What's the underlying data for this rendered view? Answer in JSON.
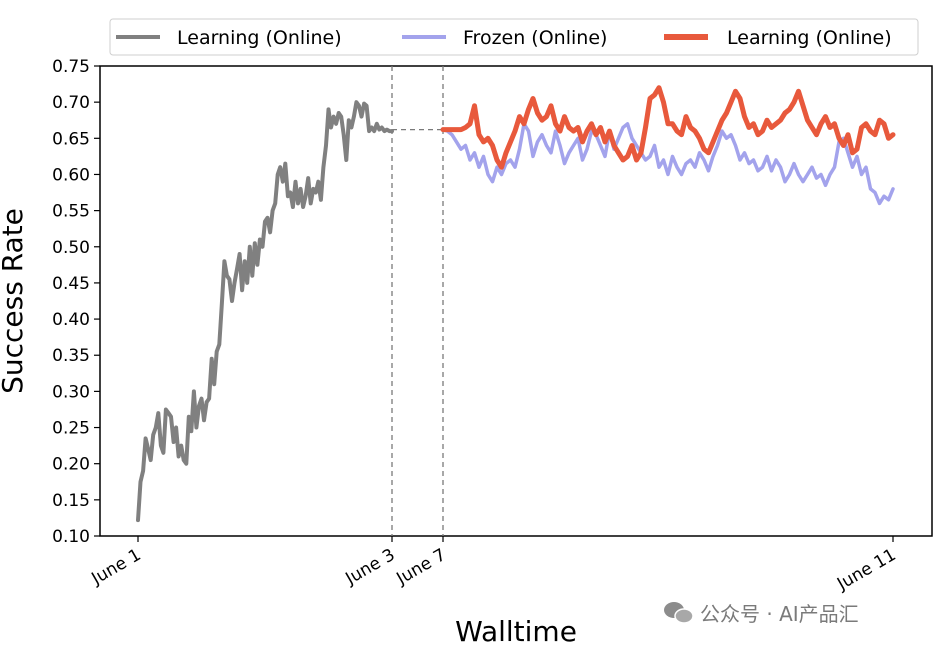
{
  "chart_data": {
    "type": "line",
    "xlabel": "Walltime",
    "ylabel": "Success Rate",
    "ylim": [
      0.1,
      0.75
    ],
    "yticks": [
      "0.10",
      "0.15",
      "0.20",
      "0.25",
      "0.30",
      "0.35",
      "0.40",
      "0.45",
      "0.50",
      "0.55",
      "0.60",
      "0.65",
      "0.70",
      "0.75"
    ],
    "xticks": [
      "June 1",
      "June 3",
      "June 7",
      "June 11"
    ],
    "legend_position": "top",
    "grid": false,
    "gap_connector": {
      "y": 0.662,
      "style": "dashed",
      "from": "June 3",
      "to": "June 7"
    },
    "series": [
      {
        "name": "Learning (Online)",
        "color": "#808080",
        "x": [
          0.0,
          0.01,
          0.02,
          0.03,
          0.04,
          0.05,
          0.06,
          0.07,
          0.08,
          0.09,
          0.1,
          0.11,
          0.12,
          0.13,
          0.14,
          0.15,
          0.16,
          0.17,
          0.18,
          0.19,
          0.2,
          0.21,
          0.22,
          0.23,
          0.24,
          0.25,
          0.26,
          0.27,
          0.28,
          0.29,
          0.3,
          0.31,
          0.32,
          0.33,
          0.34,
          0.35,
          0.36,
          0.37,
          0.38,
          0.39,
          0.4,
          0.41,
          0.42,
          0.43,
          0.44,
          0.45,
          0.46,
          0.47,
          0.48,
          0.49,
          0.5,
          0.51,
          0.52,
          0.53,
          0.54,
          0.55,
          0.56,
          0.57,
          0.58,
          0.59,
          0.6,
          0.61,
          0.62,
          0.63,
          0.64,
          0.65,
          0.66,
          0.67,
          0.68,
          0.69,
          0.7,
          0.71,
          0.72,
          0.73,
          0.74,
          0.75,
          0.76,
          0.77,
          0.78,
          0.79,
          0.8,
          0.81,
          0.82,
          0.83,
          0.84,
          0.85,
          0.86,
          0.87,
          0.88,
          0.89,
          0.9,
          0.91,
          0.92,
          0.93,
          0.94,
          0.95,
          0.96,
          0.97,
          0.98,
          0.99,
          1.0
        ],
        "values": [
          0.122,
          0.175,
          0.19,
          0.235,
          0.22,
          0.205,
          0.24,
          0.25,
          0.27,
          0.225,
          0.215,
          0.275,
          0.27,
          0.265,
          0.23,
          0.25,
          0.21,
          0.225,
          0.205,
          0.2,
          0.265,
          0.245,
          0.3,
          0.25,
          0.28,
          0.29,
          0.26,
          0.285,
          0.29,
          0.345,
          0.31,
          0.355,
          0.365,
          0.42,
          0.48,
          0.46,
          0.455,
          0.425,
          0.45,
          0.47,
          0.49,
          0.44,
          0.48,
          0.45,
          0.5,
          0.46,
          0.505,
          0.475,
          0.51,
          0.5,
          0.535,
          0.54,
          0.52,
          0.55,
          0.56,
          0.6,
          0.61,
          0.59,
          0.615,
          0.57,
          0.575,
          0.555,
          0.59,
          0.56,
          0.58,
          0.555,
          0.57,
          0.595,
          0.56,
          0.58,
          0.575,
          0.59,
          0.565,
          0.61,
          0.64,
          0.69,
          0.665,
          0.68,
          0.67,
          0.685,
          0.68,
          0.655,
          0.62,
          0.675,
          0.665,
          0.68,
          0.7,
          0.695,
          0.68,
          0.698,
          0.695,
          0.66,
          0.665,
          0.66,
          0.67,
          0.662,
          0.665,
          0.66,
          0.662,
          0.66,
          0.66
        ]
      },
      {
        "name": "Frozen (Online)",
        "color": "#a3a3ec",
        "x": [
          2.0,
          2.02,
          2.04,
          2.06,
          2.08,
          2.1,
          2.12,
          2.14,
          2.16,
          2.18,
          2.2,
          2.22,
          2.24,
          2.26,
          2.28,
          2.3,
          2.32,
          2.34,
          2.36,
          2.38,
          2.4,
          2.42,
          2.44,
          2.46,
          2.48,
          2.5,
          2.52,
          2.54,
          2.56,
          2.58,
          2.6,
          2.62,
          2.64,
          2.66,
          2.68,
          2.7,
          2.72,
          2.74,
          2.76,
          2.78,
          2.8,
          2.82,
          2.84,
          2.86,
          2.88,
          2.9,
          2.92,
          2.94,
          2.96,
          2.98,
          3.0,
          3.02,
          3.04,
          3.06,
          3.08,
          3.1,
          3.12,
          3.14,
          3.16,
          3.18,
          3.2,
          3.22,
          3.24,
          3.26,
          3.28,
          3.3,
          3.32,
          3.34,
          3.36,
          3.38,
          3.4,
          3.42,
          3.44,
          3.46,
          3.48,
          3.5,
          3.52,
          3.54,
          3.56,
          3.58,
          3.6,
          3.62,
          3.64,
          3.66,
          3.68,
          3.7,
          3.72,
          3.74,
          3.76,
          3.78,
          3.8,
          3.82,
          3.84,
          3.86,
          3.88,
          3.9,
          3.92,
          3.94,
          3.96,
          3.98,
          4.0
        ],
        "values": [
          0.662,
          0.66,
          0.655,
          0.645,
          0.635,
          0.64,
          0.62,
          0.63,
          0.61,
          0.625,
          0.6,
          0.59,
          0.61,
          0.6,
          0.615,
          0.62,
          0.61,
          0.635,
          0.67,
          0.66,
          0.625,
          0.645,
          0.655,
          0.64,
          0.63,
          0.66,
          0.64,
          0.615,
          0.63,
          0.64,
          0.65,
          0.62,
          0.635,
          0.66,
          0.655,
          0.64,
          0.625,
          0.66,
          0.635,
          0.65,
          0.665,
          0.67,
          0.65,
          0.64,
          0.63,
          0.62,
          0.625,
          0.64,
          0.61,
          0.62,
          0.6,
          0.625,
          0.61,
          0.6,
          0.615,
          0.62,
          0.61,
          0.63,
          0.62,
          0.605,
          0.625,
          0.64,
          0.66,
          0.65,
          0.655,
          0.64,
          0.62,
          0.63,
          0.615,
          0.62,
          0.605,
          0.61,
          0.625,
          0.605,
          0.62,
          0.61,
          0.59,
          0.6,
          0.615,
          0.6,
          0.59,
          0.6,
          0.61,
          0.595,
          0.6,
          0.585,
          0.6,
          0.61,
          0.645,
          0.65,
          0.63,
          0.61,
          0.625,
          0.6,
          0.61,
          0.58,
          0.575,
          0.56,
          0.57,
          0.565,
          0.58
        ]
      },
      {
        "name": "Learning (Online)",
        "color": "#e8593c",
        "x": [
          2.0,
          2.02,
          2.04,
          2.06,
          2.08,
          2.1,
          2.12,
          2.14,
          2.16,
          2.18,
          2.2,
          2.22,
          2.24,
          2.26,
          2.28,
          2.3,
          2.32,
          2.34,
          2.36,
          2.38,
          2.4,
          2.42,
          2.44,
          2.46,
          2.48,
          2.5,
          2.52,
          2.54,
          2.56,
          2.58,
          2.6,
          2.62,
          2.64,
          2.66,
          2.68,
          2.7,
          2.72,
          2.74,
          2.76,
          2.78,
          2.8,
          2.82,
          2.84,
          2.86,
          2.88,
          2.9,
          2.92,
          2.94,
          2.96,
          2.98,
          3.0,
          3.02,
          3.04,
          3.06,
          3.08,
          3.1,
          3.12,
          3.14,
          3.16,
          3.18,
          3.2,
          3.22,
          3.24,
          3.26,
          3.28,
          3.3,
          3.32,
          3.34,
          3.36,
          3.38,
          3.4,
          3.42,
          3.44,
          3.46,
          3.48,
          3.5,
          3.52,
          3.54,
          3.56,
          3.58,
          3.6,
          3.62,
          3.64,
          3.66,
          3.68,
          3.7,
          3.72,
          3.74,
          3.76,
          3.78,
          3.8,
          3.82,
          3.84,
          3.86,
          3.88,
          3.9,
          3.92,
          3.94,
          3.96,
          3.98,
          4.0
        ],
        "values": [
          0.662,
          0.662,
          0.662,
          0.662,
          0.662,
          0.665,
          0.67,
          0.695,
          0.655,
          0.645,
          0.65,
          0.64,
          0.62,
          0.61,
          0.63,
          0.645,
          0.66,
          0.68,
          0.67,
          0.69,
          0.705,
          0.685,
          0.675,
          0.68,
          0.695,
          0.67,
          0.66,
          0.68,
          0.665,
          0.66,
          0.665,
          0.645,
          0.66,
          0.67,
          0.655,
          0.665,
          0.645,
          0.66,
          0.64,
          0.63,
          0.62,
          0.625,
          0.64,
          0.62,
          0.63,
          0.665,
          0.705,
          0.71,
          0.72,
          0.7,
          0.67,
          0.67,
          0.66,
          0.655,
          0.68,
          0.665,
          0.66,
          0.65,
          0.635,
          0.63,
          0.645,
          0.66,
          0.675,
          0.685,
          0.7,
          0.715,
          0.705,
          0.68,
          0.665,
          0.67,
          0.655,
          0.66,
          0.675,
          0.665,
          0.67,
          0.675,
          0.685,
          0.69,
          0.7,
          0.715,
          0.695,
          0.675,
          0.665,
          0.655,
          0.67,
          0.68,
          0.665,
          0.67,
          0.65,
          0.64,
          0.655,
          0.63,
          0.635,
          0.665,
          0.67,
          0.66,
          0.655,
          0.675,
          0.67,
          0.65,
          0.655
        ]
      }
    ]
  },
  "watermark": "公众号 · AI产品汇"
}
